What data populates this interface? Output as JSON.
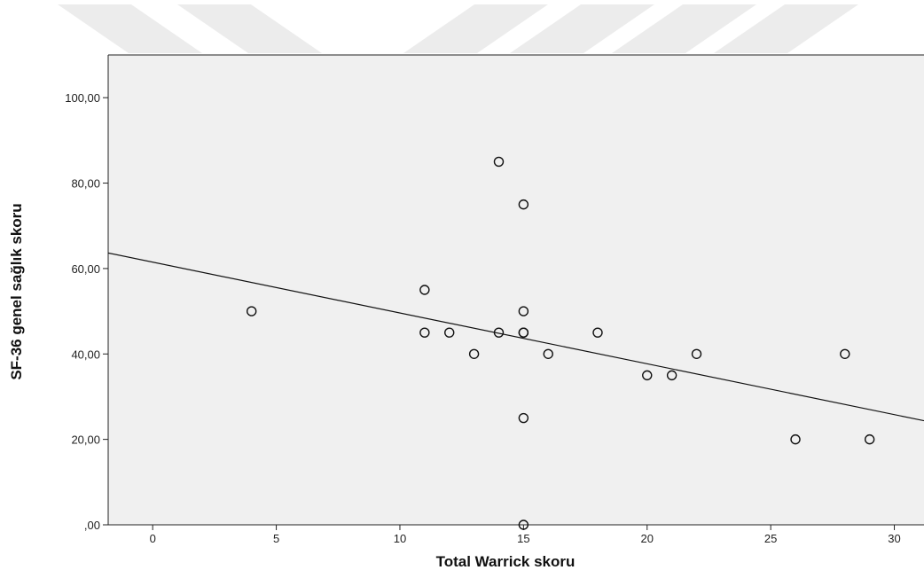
{
  "chart_data": {
    "type": "scatter",
    "xlabel": "Total Warrick skoru",
    "ylabel": "SF-36 genel sağlık skoru",
    "xlim": [
      -1.8,
      31.2
    ],
    "ylim": [
      0,
      110
    ],
    "x_ticks": [
      0,
      5,
      10,
      15,
      20,
      25,
      30
    ],
    "x_tick_labels": [
      "0",
      "5",
      "10",
      "15",
      "20",
      "25",
      "30"
    ],
    "y_ticks": [
      0,
      20,
      40,
      60,
      80,
      100
    ],
    "y_tick_labels": [
      ",00",
      "20,00",
      "40,00",
      "60,00",
      "80,00",
      "100,00"
    ],
    "grid": false,
    "points": [
      {
        "x": 4,
        "y": 50
      },
      {
        "x": 11,
        "y": 55
      },
      {
        "x": 11,
        "y": 45
      },
      {
        "x": 12,
        "y": 45
      },
      {
        "x": 13,
        "y": 40
      },
      {
        "x": 14,
        "y": 85
      },
      {
        "x": 14,
        "y": 45
      },
      {
        "x": 15,
        "y": 75
      },
      {
        "x": 15,
        "y": 50
      },
      {
        "x": 15,
        "y": 45
      },
      {
        "x": 15,
        "y": 45
      },
      {
        "x": 15,
        "y": 25
      },
      {
        "x": 15,
        "y": 0
      },
      {
        "x": 16,
        "y": 40
      },
      {
        "x": 18,
        "y": 45
      },
      {
        "x": 20,
        "y": 35
      },
      {
        "x": 21,
        "y": 35
      },
      {
        "x": 22,
        "y": 40
      },
      {
        "x": 26,
        "y": 20
      },
      {
        "x": 28,
        "y": 40
      },
      {
        "x": 29,
        "y": 20
      }
    ],
    "fit_line": {
      "type": "linear",
      "intercept": 61.5,
      "slope": -1.19
    },
    "colors": {
      "background": "#f0f0f0",
      "marker": "#111111",
      "line": "#111111",
      "watermark": "#ececec"
    }
  }
}
